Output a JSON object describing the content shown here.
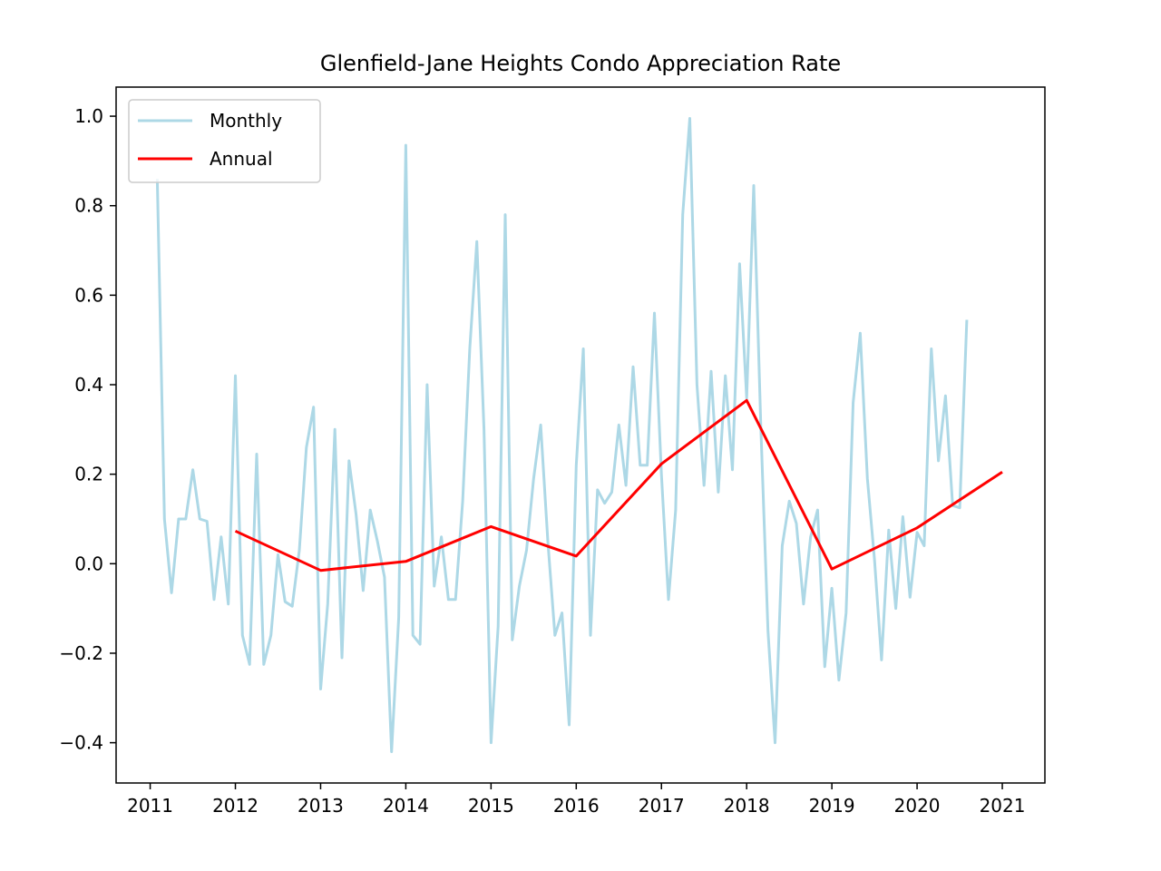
{
  "chart_data": {
    "type": "line",
    "title": "Glenfield-Jane Heights Condo Appreciation Rate",
    "xlabel": "",
    "ylabel": "",
    "xlim": [
      2010.6,
      2021.5
    ],
    "ylim": [
      -0.49,
      1.065
    ],
    "x_ticks": [
      2011,
      2012,
      2013,
      2014,
      2015,
      2016,
      2017,
      2018,
      2019,
      2020,
      2021
    ],
    "x_tick_labels": [
      "2011",
      "2012",
      "2013",
      "2014",
      "2015",
      "2016",
      "2017",
      "2018",
      "2019",
      "2020",
      "2021"
    ],
    "y_ticks": [
      -0.4,
      -0.2,
      0.0,
      0.2,
      0.4,
      0.6,
      0.8,
      1.0
    ],
    "y_tick_labels": [
      "−0.4",
      "−0.2",
      "0.0",
      "0.2",
      "0.4",
      "0.6",
      "0.8",
      "1.0"
    ],
    "legend": {
      "placement": "upper-left"
    },
    "grid": false,
    "series": [
      {
        "name": "Monthly",
        "color": "#add8e6",
        "points": [
          [
            2011.083,
            0.86
          ],
          [
            2011.167,
            0.1
          ],
          [
            2011.25,
            -0.065
          ],
          [
            2011.333,
            0.1
          ],
          [
            2011.417,
            0.1
          ],
          [
            2011.5,
            0.21
          ],
          [
            2011.583,
            0.1
          ],
          [
            2011.667,
            0.095
          ],
          [
            2011.75,
            -0.08
          ],
          [
            2011.833,
            0.06
          ],
          [
            2011.917,
            -0.09
          ],
          [
            2012.0,
            0.42
          ],
          [
            2012.083,
            -0.16
          ],
          [
            2012.167,
            -0.225
          ],
          [
            2012.25,
            0.245
          ],
          [
            2012.333,
            -0.225
          ],
          [
            2012.417,
            -0.16
          ],
          [
            2012.5,
            0.02
          ],
          [
            2012.583,
            -0.085
          ],
          [
            2012.667,
            -0.095
          ],
          [
            2012.75,
            0.03
          ],
          [
            2012.833,
            0.26
          ],
          [
            2012.917,
            0.35
          ],
          [
            2013.0,
            -0.28
          ],
          [
            2013.083,
            -0.09
          ],
          [
            2013.167,
            0.3
          ],
          [
            2013.25,
            -0.21
          ],
          [
            2013.333,
            0.23
          ],
          [
            2013.417,
            0.11
          ],
          [
            2013.5,
            -0.06
          ],
          [
            2013.583,
            0.12
          ],
          [
            2013.667,
            0.05
          ],
          [
            2013.75,
            -0.03
          ],
          [
            2013.833,
            -0.42
          ],
          [
            2013.917,
            -0.12
          ],
          [
            2014.0,
            0.935
          ],
          [
            2014.083,
            -0.16
          ],
          [
            2014.167,
            -0.18
          ],
          [
            2014.25,
            0.4
          ],
          [
            2014.333,
            -0.05
          ],
          [
            2014.417,
            0.06
          ],
          [
            2014.5,
            -0.08
          ],
          [
            2014.583,
            -0.08
          ],
          [
            2014.667,
            0.14
          ],
          [
            2014.75,
            0.48
          ],
          [
            2014.833,
            0.72
          ],
          [
            2014.917,
            0.3
          ],
          [
            2015.0,
            -0.4
          ],
          [
            2015.083,
            -0.14
          ],
          [
            2015.167,
            0.78
          ],
          [
            2015.25,
            -0.17
          ],
          [
            2015.333,
            -0.05
          ],
          [
            2015.417,
            0.03
          ],
          [
            2015.5,
            0.19
          ],
          [
            2015.583,
            0.31
          ],
          [
            2015.667,
            0.05
          ],
          [
            2015.75,
            -0.16
          ],
          [
            2015.833,
            -0.11
          ],
          [
            2015.917,
            -0.36
          ],
          [
            2016.0,
            0.22
          ],
          [
            2016.083,
            0.48
          ],
          [
            2016.167,
            -0.16
          ],
          [
            2016.25,
            0.165
          ],
          [
            2016.333,
            0.135
          ],
          [
            2016.417,
            0.16
          ],
          [
            2016.5,
            0.31
          ],
          [
            2016.583,
            0.175
          ],
          [
            2016.667,
            0.44
          ],
          [
            2016.75,
            0.22
          ],
          [
            2016.833,
            0.22
          ],
          [
            2016.917,
            0.56
          ],
          [
            2017.0,
            0.2
          ],
          [
            2017.083,
            -0.08
          ],
          [
            2017.167,
            0.12
          ],
          [
            2017.25,
            0.78
          ],
          [
            2017.333,
            0.995
          ],
          [
            2017.417,
            0.4
          ],
          [
            2017.5,
            0.175
          ],
          [
            2017.583,
            0.43
          ],
          [
            2017.667,
            0.16
          ],
          [
            2017.75,
            0.42
          ],
          [
            2017.833,
            0.21
          ],
          [
            2017.917,
            0.67
          ],
          [
            2018.0,
            0.37
          ],
          [
            2018.083,
            0.845
          ],
          [
            2018.167,
            0.3
          ],
          [
            2018.25,
            -0.15
          ],
          [
            2018.333,
            -0.4
          ],
          [
            2018.417,
            0.04
          ],
          [
            2018.5,
            0.14
          ],
          [
            2018.583,
            0.09
          ],
          [
            2018.667,
            -0.09
          ],
          [
            2018.75,
            0.06
          ],
          [
            2018.833,
            0.12
          ],
          [
            2018.917,
            -0.23
          ],
          [
            2019.0,
            -0.055
          ],
          [
            2019.083,
            -0.26
          ],
          [
            2019.167,
            -0.11
          ],
          [
            2019.25,
            0.36
          ],
          [
            2019.333,
            0.515
          ],
          [
            2019.417,
            0.19
          ],
          [
            2019.5,
            0.01
          ],
          [
            2019.583,
            -0.215
          ],
          [
            2019.667,
            0.075
          ],
          [
            2019.75,
            -0.1
          ],
          [
            2019.833,
            0.105
          ],
          [
            2019.917,
            -0.075
          ],
          [
            2020.0,
            0.07
          ],
          [
            2020.083,
            0.04
          ],
          [
            2020.167,
            0.48
          ],
          [
            2020.25,
            0.23
          ],
          [
            2020.333,
            0.375
          ],
          [
            2020.417,
            0.13
          ],
          [
            2020.5,
            0.125
          ],
          [
            2020.583,
            0.545
          ]
        ]
      },
      {
        "name": "Annual",
        "color": "#ff0000",
        "points": [
          [
            2012,
            0.073
          ],
          [
            2013,
            -0.015
          ],
          [
            2014,
            0.005
          ],
          [
            2015,
            0.083
          ],
          [
            2016,
            0.017
          ],
          [
            2017,
            0.223
          ],
          [
            2018,
            0.365
          ],
          [
            2019,
            -0.012
          ],
          [
            2020,
            0.08
          ],
          [
            2021,
            0.205
          ]
        ]
      }
    ]
  }
}
